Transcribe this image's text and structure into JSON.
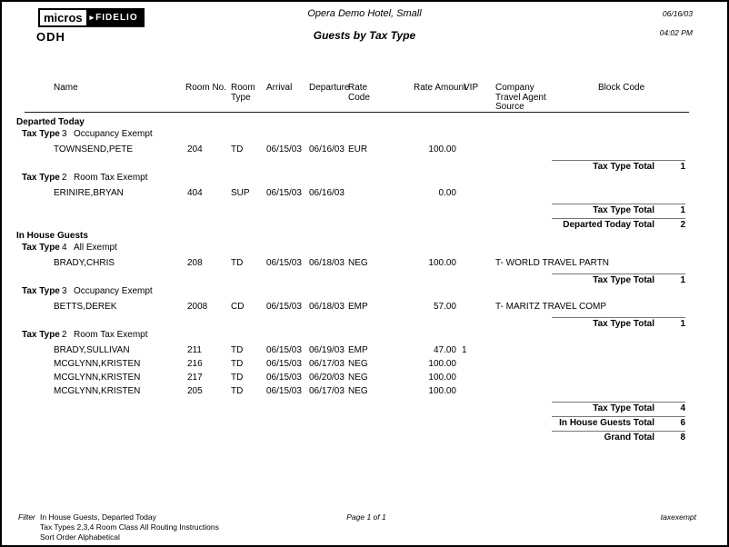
{
  "header": {
    "logo_micros": "micros",
    "logo_fidelio": "FIDELIO",
    "property_code": "ODH",
    "hotel_name": "Opera Demo Hotel, Small",
    "report_title": "Guests by Tax Type",
    "date": "06/16/03",
    "time": "04:02 PM"
  },
  "columns": {
    "name": "Name",
    "room_no": "Room No.",
    "room_type": "Room Type",
    "arrival": "Arrival",
    "departure": "Departure",
    "rate_code": "Rate Code",
    "rate_amount": "Rate Amount",
    "vip": "VIP",
    "company": "Company Travel Agent Source",
    "block_code": "Block Code"
  },
  "labels": {
    "tax_type": "Tax Type",
    "tax_type_total": "Tax Type Total"
  },
  "sections": [
    {
      "name": "Departed Today",
      "total_label": "Departed Today Total",
      "total": "2",
      "groups": [
        {
          "tax_type": "3",
          "description": "Occupancy Exempt",
          "total": "1",
          "rows": [
            {
              "name": "TOWNSEND,PETE",
              "room": "204",
              "room_type": "TD",
              "arrival": "06/15/03",
              "departure": "06/16/03",
              "rate_code": "EUR",
              "rate_amount": "100.00",
              "vip": "",
              "company": ""
            }
          ]
        },
        {
          "tax_type": "2",
          "description": "Room Tax Exempt",
          "total": "1",
          "rows": [
            {
              "name": "ERINIRE,BRYAN",
              "room": "404",
              "room_type": "SUP",
              "arrival": "06/15/03",
              "departure": "06/16/03",
              "rate_code": "",
              "rate_amount": "0.00",
              "vip": "",
              "company": ""
            }
          ]
        }
      ]
    },
    {
      "name": "In House Guests",
      "total_label": "In House Guests Total",
      "total": "6",
      "groups": [
        {
          "tax_type": "4",
          "description": "All Exempt",
          "total": "1",
          "rows": [
            {
              "name": "BRADY,CHRIS",
              "room": "208",
              "room_type": "TD",
              "arrival": "06/15/03",
              "departure": "06/18/03",
              "rate_code": "NEG",
              "rate_amount": "100.00",
              "vip": "",
              "company": "T- WORLD TRAVEL PARTN"
            }
          ]
        },
        {
          "tax_type": "3",
          "description": "Occupancy Exempt",
          "total": "1",
          "rows": [
            {
              "name": "BETTS,DEREK",
              "room": "2008",
              "room_type": "CD",
              "arrival": "06/15/03",
              "departure": "06/18/03",
              "rate_code": "EMP",
              "rate_amount": "57.00",
              "vip": "",
              "company": "T- MARITZ TRAVEL COMP"
            }
          ]
        },
        {
          "tax_type": "2",
          "description": "Room Tax Exempt",
          "total": "4",
          "rows": [
            {
              "name": "BRADY,SULLIVAN",
              "room": "211",
              "room_type": "TD",
              "arrival": "06/15/03",
              "departure": "06/19/03",
              "rate_code": "EMP",
              "rate_amount": "47.00",
              "vip": "1",
              "company": ""
            },
            {
              "name": "MCGLYNN,KRISTEN",
              "room": "216",
              "room_type": "TD",
              "arrival": "06/15/03",
              "departure": "06/17/03",
              "rate_code": "NEG",
              "rate_amount": "100.00",
              "vip": "",
              "company": ""
            },
            {
              "name": "MCGLYNN,KRISTEN",
              "room": "217",
              "room_type": "TD",
              "arrival": "06/15/03",
              "departure": "06/20/03",
              "rate_code": "NEG",
              "rate_amount": "100.00",
              "vip": "",
              "company": ""
            },
            {
              "name": "MCGLYNN,KRISTEN",
              "room": "205",
              "room_type": "TD",
              "arrival": "06/15/03",
              "departure": "06/17/03",
              "rate_code": "NEG",
              "rate_amount": "100.00",
              "vip": "",
              "company": ""
            }
          ]
        }
      ]
    }
  ],
  "grand_total": {
    "label": "Grand Total",
    "value": "8"
  },
  "footer": {
    "filter_label": "Filter",
    "filter_lines": [
      "In House Guests,  Departed Today",
      "Tax Types 2,3,4   Room Class All   Routing Instructions",
      "Sort Order Alphabetical"
    ],
    "page": "Page 1 of 1",
    "report_code": "taxexempt"
  }
}
